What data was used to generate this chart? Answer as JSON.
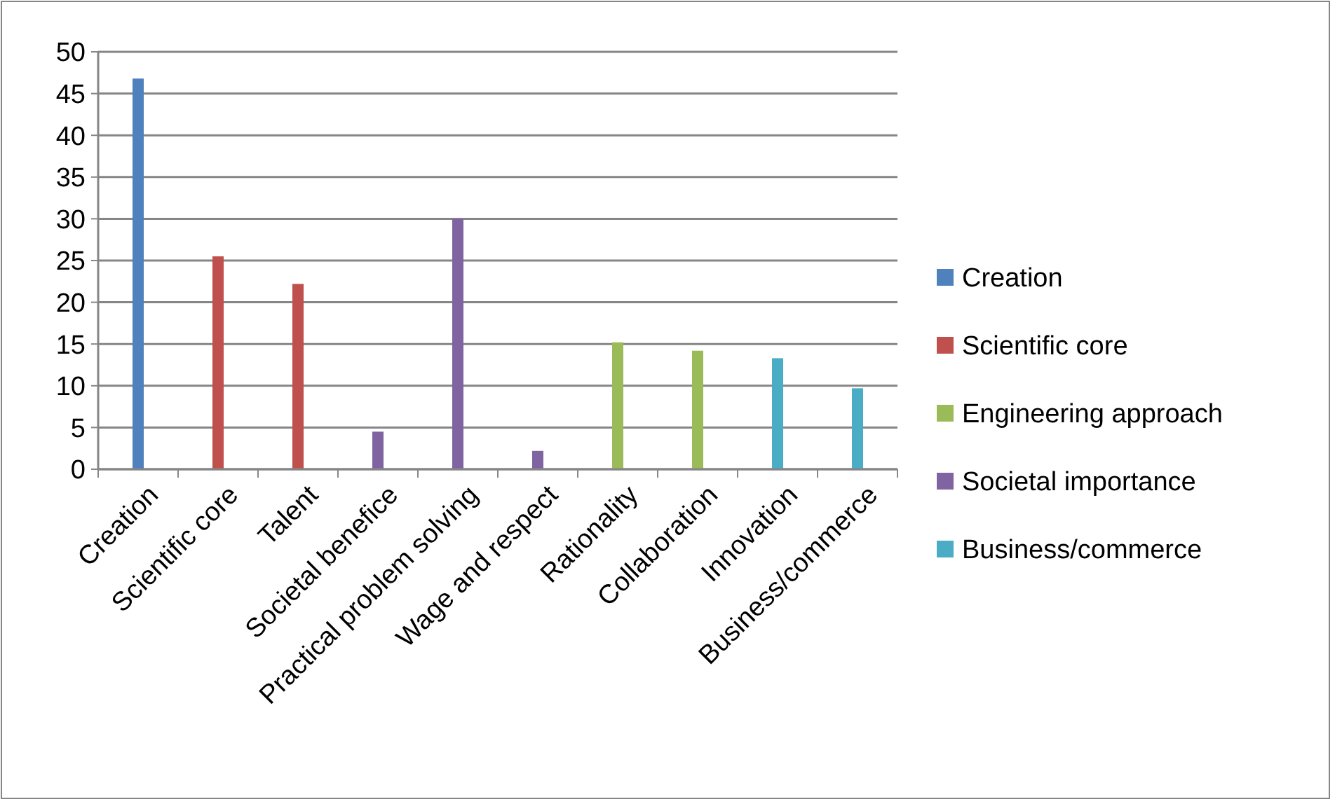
{
  "chart_data": {
    "type": "bar",
    "categories": [
      "Creation",
      "Scientific core",
      "Talent",
      "Societal benefice",
      "Practical problem solving",
      "Wage and respect",
      "Rationality",
      "Collaboration",
      "Innovation",
      "Business/commerce"
    ],
    "series": [
      {
        "name": "Creation",
        "color": "#4f81bd",
        "values": [
          46.8,
          null,
          null,
          null,
          null,
          null,
          null,
          null,
          null,
          null
        ]
      },
      {
        "name": "Scientific core",
        "color": "#c0504d",
        "values": [
          null,
          25.5,
          22.2,
          null,
          null,
          null,
          null,
          null,
          null,
          null
        ]
      },
      {
        "name": "Engineering approach",
        "color": "#9bbb59",
        "values": [
          null,
          null,
          null,
          null,
          null,
          null,
          15.2,
          14.2,
          null,
          null
        ]
      },
      {
        "name": "Societal importance",
        "color": "#8064a2",
        "values": [
          null,
          null,
          null,
          4.5,
          30,
          2.2,
          null,
          null,
          null,
          null
        ]
      },
      {
        "name": "Business/commerce",
        "color": "#4bacc6",
        "values": [
          null,
          null,
          null,
          null,
          null,
          null,
          null,
          null,
          13.3,
          9.7
        ]
      }
    ],
    "ylim": [
      0,
      50
    ],
    "yticks": [
      0,
      5,
      10,
      15,
      20,
      25,
      30,
      35,
      40,
      45,
      50
    ],
    "grid": "y",
    "legend": "right"
  }
}
